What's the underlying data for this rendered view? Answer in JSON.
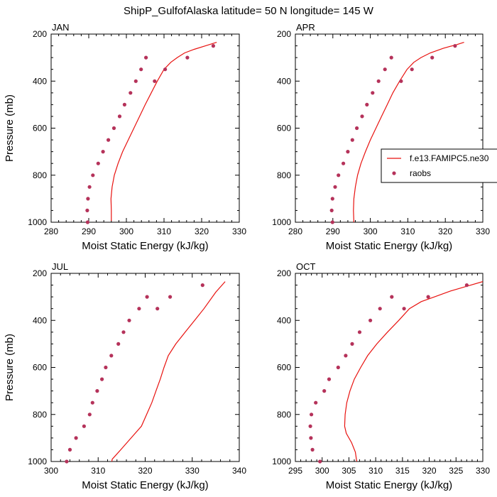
{
  "figure_title": "ShipP_GulfofAlaska  latitude= 50 N longitude= 145 W",
  "legend": {
    "model_label": "f.e13.FAMIPC5.ne30",
    "obs_label": "raobs"
  },
  "colors": {
    "model": "#e8120f",
    "obs": "#b5325a"
  },
  "chart_data": [
    {
      "type": "line",
      "panel": "JAN",
      "title": "JAN",
      "xlabel": "Moist Static Energy (kJ/kg)",
      "ylabel": "Pressure (mb)",
      "xlim": [
        280,
        330
      ],
      "ylim": [
        1000,
        200
      ],
      "xticks": [
        280,
        290,
        300,
        310,
        320,
        330
      ],
      "yticks": [
        200,
        400,
        600,
        800,
        1000
      ],
      "series": [
        {
          "name": "f.e13.FAMIPC5.ne30",
          "style": "line",
          "x": [
            296.0,
            296.0,
            295.9,
            296.2,
            296.8,
            297.8,
            299.0,
            300.5,
            302.0,
            303.5,
            305.0,
            306.6,
            308.2,
            310.0,
            311.8,
            313.5,
            315.5,
            318.0,
            321.0,
            324.0
          ],
          "y": [
            995,
            950,
            900,
            850,
            800,
            750,
            700,
            650,
            600,
            550,
            500,
            450,
            400,
            350,
            320,
            300,
            280,
            265,
            250,
            235
          ]
        },
        {
          "name": "raobs",
          "style": "markers",
          "x": [
            289.7,
            289.6,
            289.8,
            290.2,
            291.1,
            292.5,
            293.8,
            295.2,
            296.7,
            298.2,
            299.5,
            301.1,
            302.5,
            303.9,
            305.2,
            307.5,
            310.3,
            316.2,
            323.1
          ],
          "y": [
            1000,
            950,
            900,
            850,
            800,
            750,
            700,
            650,
            600,
            550,
            500,
            450,
            400,
            350,
            300,
            400,
            350,
            300,
            250
          ]
        }
      ]
    },
    {
      "type": "line",
      "panel": "APR",
      "title": "APR",
      "xlabel": "Moist Static Energy (kJ/kg)",
      "ylabel": "",
      "xlim": [
        280,
        330
      ],
      "ylim": [
        1000,
        200
      ],
      "xticks": [
        280,
        290,
        300,
        310,
        320,
        330
      ],
      "yticks": [
        200,
        400,
        600,
        800,
        1000
      ],
      "series": [
        {
          "name": "f.e13.FAMIPC5.ne30",
          "style": "line",
          "x": [
            295.6,
            295.5,
            295.6,
            296.0,
            296.6,
            297.5,
            298.7,
            300.0,
            301.5,
            303.0,
            304.5,
            306.0,
            307.8,
            309.8,
            311.6,
            313.5,
            316.0,
            319.5,
            323.0,
            325.0
          ],
          "y": [
            1000,
            950,
            900,
            850,
            800,
            750,
            700,
            650,
            600,
            550,
            500,
            450,
            400,
            350,
            320,
            300,
            280,
            260,
            245,
            235
          ]
        },
        {
          "name": "raobs",
          "style": "markers",
          "x": [
            289.9,
            289.7,
            289.9,
            290.6,
            291.5,
            292.8,
            294.0,
            295.2,
            296.4,
            297.8,
            299.1,
            300.6,
            302.2,
            303.9,
            305.6,
            308.2,
            311.1,
            316.5,
            322.6
          ],
          "y": [
            1000,
            950,
            900,
            850,
            800,
            750,
            700,
            650,
            600,
            550,
            500,
            450,
            400,
            350,
            300,
            400,
            350,
            300,
            250
          ]
        }
      ]
    },
    {
      "type": "line",
      "panel": "JUL",
      "title": "JUL",
      "xlabel": "Moist Static Energy (kJ/kg)",
      "ylabel": "Pressure (mb)",
      "xlim": [
        300,
        340
      ],
      "ylim": [
        1000,
        200
      ],
      "xticks": [
        300,
        310,
        320,
        330,
        340
      ],
      "yticks": [
        200,
        400,
        600,
        800,
        1000
      ],
      "series": [
        {
          "name": "f.e13.FAMIPC5.ne30",
          "style": "line",
          "x": [
            312.8,
            313.0,
            314.8,
            317.0,
            319.2,
            320.3,
            321.4,
            322.3,
            323.2,
            324.0,
            324.9,
            326.5,
            328.5,
            330.5,
            332.5,
            335.0,
            337.0
          ],
          "y": [
            1010,
            990,
            950,
            900,
            850,
            800,
            750,
            700,
            650,
            600,
            550,
            500,
            450,
            400,
            350,
            280,
            235
          ]
        },
        {
          "name": "raobs",
          "style": "markers",
          "x": [
            303.3,
            304.0,
            305.3,
            307.0,
            308.2,
            308.8,
            309.8,
            310.8,
            311.6,
            312.8,
            314.3,
            315.4,
            316.6,
            318.7,
            320.4,
            322.6,
            325.3,
            332.2
          ],
          "y": [
            1000,
            950,
            900,
            850,
            800,
            750,
            700,
            650,
            600,
            550,
            500,
            450,
            400,
            350,
            300,
            350,
            300,
            250
          ]
        }
      ]
    },
    {
      "type": "line",
      "panel": "OCT",
      "title": "OCT",
      "xlabel": "Moist Static Energy (kJ/kg)",
      "ylabel": "",
      "xlim": [
        295,
        330
      ],
      "ylim": [
        1000,
        200
      ],
      "xticks": [
        295,
        300,
        305,
        310,
        315,
        320,
        325,
        330
      ],
      "yticks": [
        200,
        400,
        600,
        800,
        1000
      ],
      "series": [
        {
          "name": "f.e13.FAMIPC5.ne30",
          "style": "line",
          "x": [
            306.5,
            306.2,
            305.5,
            304.5,
            304.2,
            304.3,
            304.6,
            305.2,
            306.0,
            307.2,
            308.5,
            310.2,
            312.2,
            314.3,
            316.3,
            318.5,
            321.0,
            324.0,
            327.0,
            330.0
          ],
          "y": [
            1005,
            960,
            920,
            880,
            850,
            800,
            750,
            700,
            650,
            600,
            550,
            500,
            450,
            400,
            350,
            320,
            300,
            275,
            255,
            235
          ]
        },
        {
          "name": "raobs",
          "style": "markers",
          "x": [
            299.6,
            298.2,
            297.9,
            297.8,
            298.0,
            298.8,
            300.4,
            301.3,
            303.0,
            304.4,
            305.6,
            307.0,
            309.0,
            310.8,
            313.0,
            315.3,
            319.8,
            327.0
          ],
          "y": [
            1000,
            950,
            900,
            850,
            800,
            750,
            700,
            650,
            600,
            550,
            500,
            450,
            400,
            350,
            300,
            350,
            300,
            250
          ]
        }
      ]
    }
  ]
}
